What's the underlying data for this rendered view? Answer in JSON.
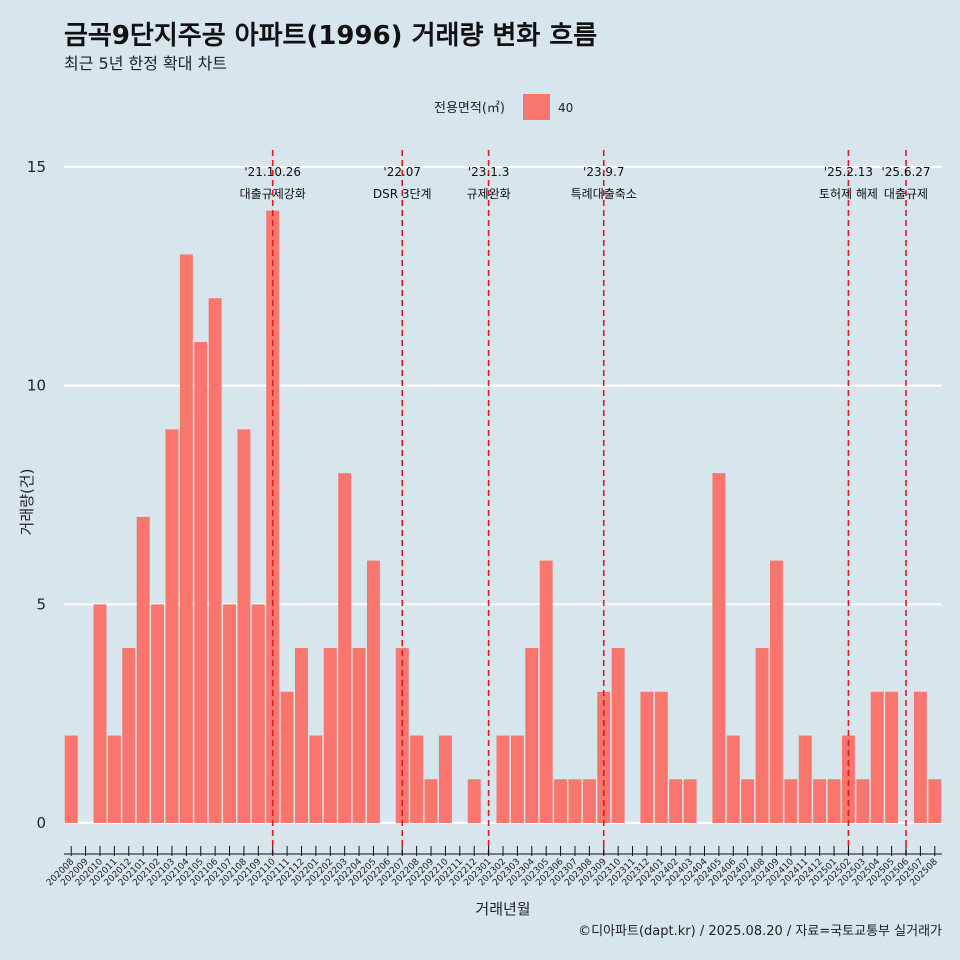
{
  "chart_data": {
    "type": "bar",
    "title": "금곡9단지주공 아파트(1996) 거래량 변화 흐름",
    "subtitle": "최근 5년 한정 확대 차트",
    "xlabel": "거래년월",
    "ylabel": "거래량(건)",
    "ylim": [
      0,
      15
    ],
    "yticks": [
      0,
      5,
      10,
      15
    ],
    "grid": true,
    "legend": {
      "title": "전용면적(㎡)",
      "placement": "top",
      "entries": [
        {
          "label": "40",
          "color": "#f8766d"
        }
      ]
    },
    "categories": [
      "202008",
      "202009",
      "202010",
      "202011",
      "202012",
      "202101",
      "202102",
      "202103",
      "202104",
      "202105",
      "202106",
      "202107",
      "202108",
      "202109",
      "202110",
      "202111",
      "202112",
      "202201",
      "202202",
      "202203",
      "202204",
      "202205",
      "202206",
      "202207",
      "202208",
      "202209",
      "202210",
      "202211",
      "202212",
      "202301",
      "202302",
      "202303",
      "202304",
      "202305",
      "202306",
      "202307",
      "202308",
      "202309",
      "202310",
      "202311",
      "202312",
      "202401",
      "202402",
      "202403",
      "202404",
      "202405",
      "202406",
      "202407",
      "202408",
      "202409",
      "202410",
      "202411",
      "202412",
      "202501",
      "202502",
      "202503",
      "202504",
      "202505",
      "202506",
      "202507",
      "202508"
    ],
    "series": [
      {
        "name": "40",
        "color": "#f8766d",
        "values": [
          2,
          0,
          5,
          2,
          4,
          7,
          5,
          9,
          13,
          11,
          12,
          5,
          9,
          5,
          14,
          3,
          4,
          2,
          4,
          8,
          4,
          6,
          0,
          4,
          2,
          1,
          2,
          0,
          1,
          0,
          2,
          2,
          4,
          6,
          1,
          1,
          1,
          3,
          4,
          0,
          3,
          3,
          1,
          1,
          0,
          8,
          2,
          1,
          4,
          6,
          1,
          2,
          1,
          1,
          2,
          1,
          3,
          3,
          0,
          3,
          1
        ]
      }
    ],
    "annotations": [
      {
        "x": "202110",
        "date": "'21.10.26",
        "label": "대출규제강화",
        "color": "#e31a1c"
      },
      {
        "x": "202207",
        "date": "'22.07",
        "label": "DSR 3단계",
        "color": "#e31a1c"
      },
      {
        "x": "202301",
        "date": "'23.1.3",
        "label": "규제완화",
        "color": "#e31a1c"
      },
      {
        "x": "202309",
        "date": "'23.9.7",
        "label": "특례대출축소",
        "color": "#e31a1c"
      },
      {
        "x": "202502",
        "date": "'25.2.13",
        "label": "토허제 해제",
        "color": "#e31a1c"
      },
      {
        "x": "202506",
        "date": "'25.6.27",
        "label": "대출규제",
        "color": "#e31a1c"
      }
    ]
  },
  "caption": "©디아파트(dapt.kr) / 2025.08.20 / 자료=국토교통부 실거래가"
}
